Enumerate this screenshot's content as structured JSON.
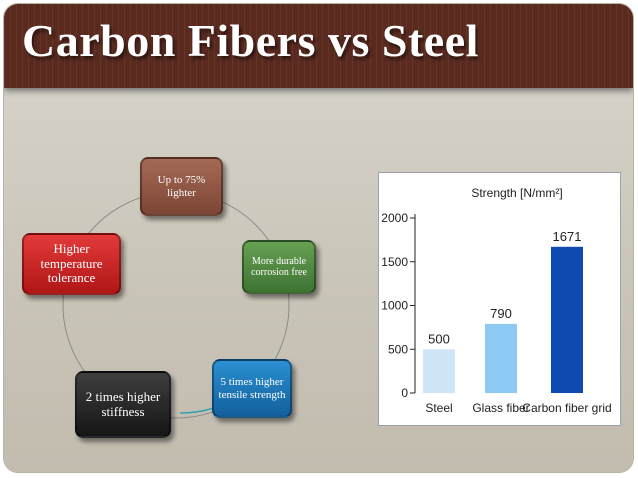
{
  "slide": {
    "title": "Carbon Fibers vs Steel"
  },
  "benefits": [
    {
      "lines": [
        "Up to 75%",
        "lighter"
      ],
      "color": "#8e5644"
    },
    {
      "lines": [
        "More durable",
        "corrosion free"
      ],
      "color": "#4f8a41"
    },
    {
      "lines": [
        "5 times higher",
        "tensile strength"
      ],
      "color": "#1e78bb"
    },
    {
      "lines": [
        "2 times higher",
        "stiffness"
      ],
      "color": "#2a2a2a"
    },
    {
      "lines": [
        "Higher",
        "temperature",
        "tolerance"
      ],
      "color": "#cc2222"
    }
  ],
  "chart_data": {
    "type": "bar",
    "title": "Strength [N/mm²]",
    "categories": [
      "Steel",
      "Glass fiber",
      "Carbon fiber grid"
    ],
    "values": [
      500,
      790,
      1671
    ],
    "value_labels": [
      "500",
      "790",
      "1671"
    ],
    "colors": [
      "#cfe6f8",
      "#8ccaf3",
      "#0d4bb0"
    ],
    "ylim": [
      0,
      2000
    ],
    "yticks": [
      0,
      500,
      1000,
      1500,
      2000
    ],
    "ytick_labels": [
      "0",
      "500",
      "1000",
      "1500",
      "2000"
    ],
    "xlabel": "",
    "ylabel": ""
  }
}
